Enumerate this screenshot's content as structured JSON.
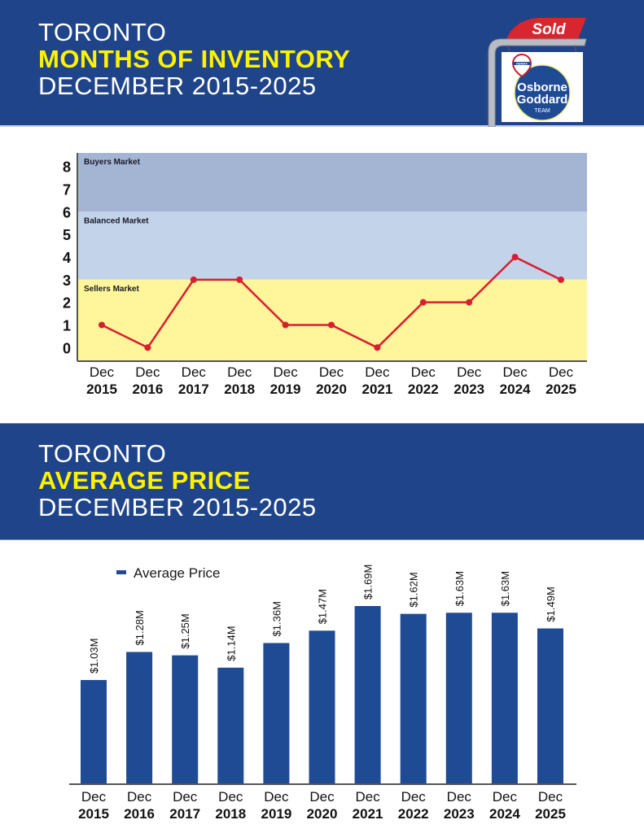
{
  "section1": {
    "title_line1": "TORONTO",
    "title_line2": "MONTHS OF INVENTORY",
    "title_line3": "DECEMBER 2015-2025"
  },
  "section2": {
    "title_line1": "TORONTO",
    "title_line2": "AVERAGE PRICE",
    "title_line3": "DECEMBER 2015-2025"
  },
  "logo": {
    "sold_label": "Sold",
    "brand_small": "RE/MAX",
    "brand_line1": "Osborne",
    "brand_line2": "Goddard",
    "brand_line3": "TEAM"
  },
  "colors": {
    "banner": "#1f4489",
    "highlight": "#fff200",
    "line": "#d71f30",
    "bar": "#1f4a94",
    "buyers_zone": "#a4b5d4",
    "balanced_zone": "#c3d3ea",
    "sellers_zone": "#fff59a"
  },
  "chart_data": [
    {
      "type": "line",
      "title": "Toronto Months of Inventory December 2015-2025",
      "categories": [
        [
          "Dec",
          "2015"
        ],
        [
          "Dec",
          "2016"
        ],
        [
          "Dec",
          "2017"
        ],
        [
          "Dec",
          "2018"
        ],
        [
          "Dec",
          "2019"
        ],
        [
          "Dec",
          "2020"
        ],
        [
          "Dec",
          "2021"
        ],
        [
          "Dec",
          "2022"
        ],
        [
          "Dec",
          "2023"
        ],
        [
          "Dec",
          "2024"
        ],
        [
          "Dec",
          "2025"
        ]
      ],
      "values": [
        1,
        0,
        3,
        3,
        1,
        1,
        0,
        2,
        2,
        4,
        3
      ],
      "ylim": [
        -0.6,
        8.6
      ],
      "yticks": [
        0,
        1,
        2,
        3,
        4,
        5,
        6,
        7,
        8
      ],
      "xlabel": "",
      "ylabel": "",
      "zones": [
        {
          "label": "Buyers Market",
          "from": 6,
          "to": 8.6
        },
        {
          "label": "Balanced Market",
          "from": 3,
          "to": 6
        },
        {
          "label": "Sellers Market",
          "from": -0.6,
          "to": 3
        }
      ],
      "grid": false,
      "legend": "none"
    },
    {
      "type": "bar",
      "title": "Toronto Average Price December 2015-2025",
      "categories": [
        [
          "Dec",
          "2015"
        ],
        [
          "Dec",
          "2016"
        ],
        [
          "Dec",
          "2017"
        ],
        [
          "Dec",
          "2018"
        ],
        [
          "Dec",
          "2019"
        ],
        [
          "Dec",
          "2020"
        ],
        [
          "Dec",
          "2021"
        ],
        [
          "Dec",
          "2022"
        ],
        [
          "Dec",
          "2023"
        ],
        [
          "Dec",
          "2024"
        ],
        [
          "Dec",
          "2025"
        ]
      ],
      "series": [
        {
          "name": "Average Price",
          "values": [
            1.03,
            1.28,
            1.25,
            1.14,
            1.36,
            1.47,
            1.69,
            1.62,
            1.63,
            1.63,
            1.49
          ],
          "labels": [
            "$1.03M",
            "$1.28M",
            "$1.25M",
            "$1.14M",
            "$1.36M",
            "$1.47M",
            "$1.69M",
            "$1.62M",
            "$1.63M",
            "$1.63M",
            "$1.49M"
          ]
        }
      ],
      "unit": "millions CAD",
      "ylim": [
        0.1,
        1.69
      ],
      "xlabel": "",
      "ylabel": "",
      "grid": false,
      "legend": "top-left"
    }
  ]
}
